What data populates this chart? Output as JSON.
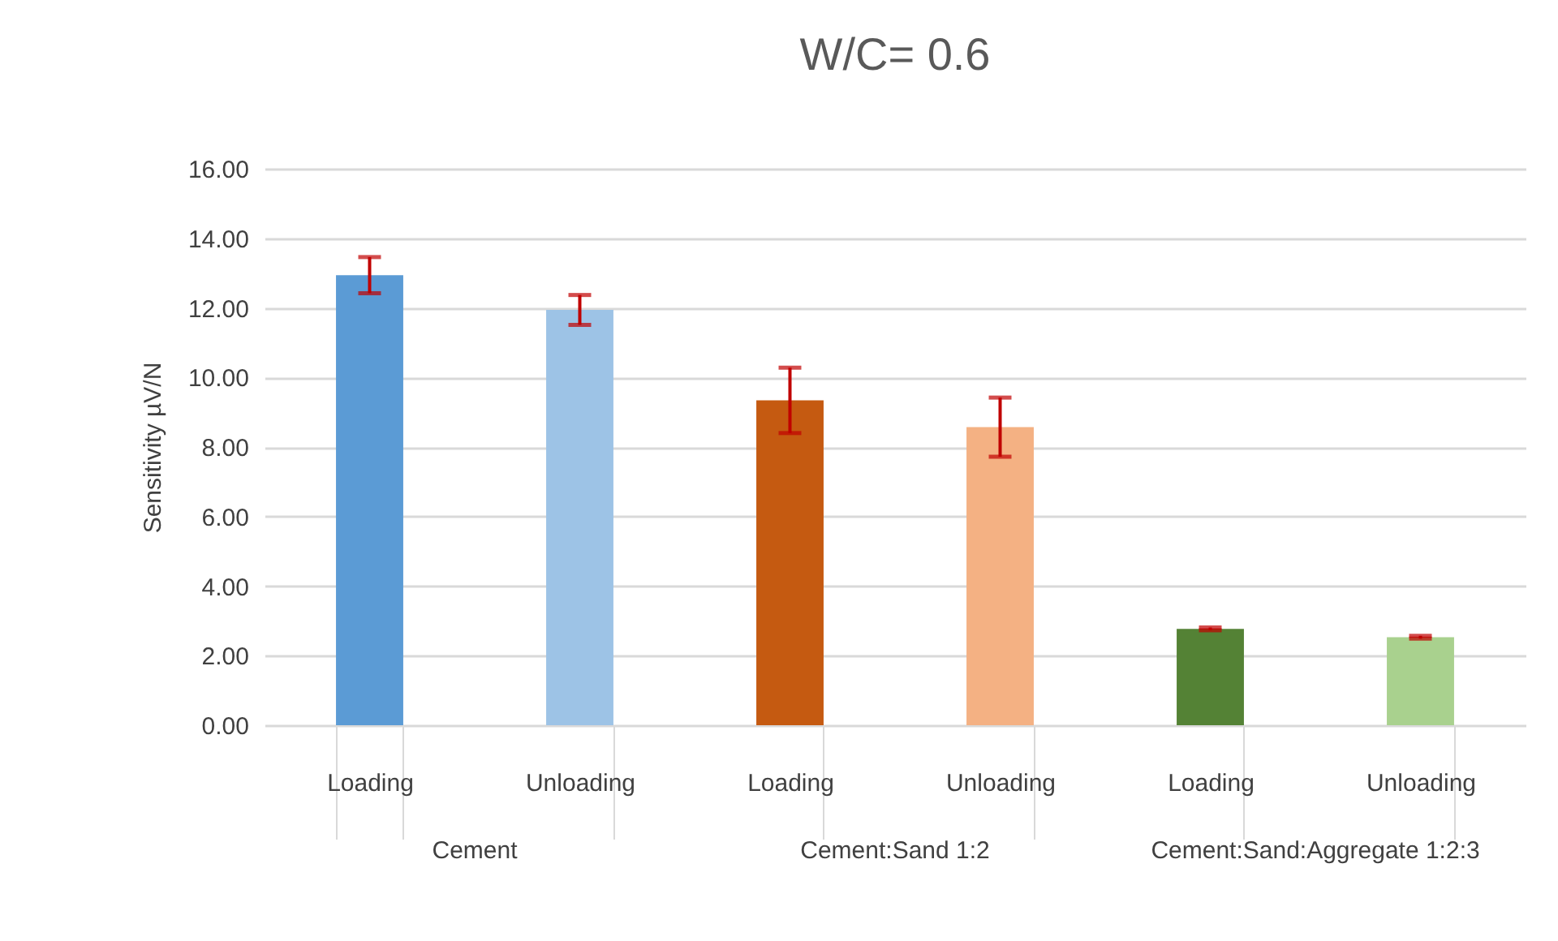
{
  "chart_data": {
    "type": "bar",
    "title": "W/C= 0.6",
    "ylabel": "Sensitivity µV/N",
    "categories": [
      "Loading",
      "Unloading",
      "Loading",
      "Unloading",
      "Loading",
      "Unloading"
    ],
    "values": [
      12.94,
      11.94,
      9.34,
      8.57,
      2.77,
      2.53
    ],
    "errors": [
      0.52,
      0.43,
      0.94,
      0.85,
      0.04,
      0.04
    ],
    "colors": [
      "#5b9bd5",
      "#9dc3e6",
      "#c55a11",
      "#f4b183",
      "#548235",
      "#a9d18e"
    ],
    "annotations": [
      "Cement",
      "Cement:Sand 1:2",
      "Cement:Sand:Aggregate 1:2:3"
    ],
    "ylim": [
      0,
      16
    ],
    "yticks": [
      {
        "value": 0,
        "label": "0.00"
      },
      {
        "value": 2,
        "label": "2.00"
      },
      {
        "value": 4,
        "label": "4.00"
      },
      {
        "value": 6,
        "label": "6.00"
      },
      {
        "value": 8,
        "label": "8.00"
      },
      {
        "value": 10,
        "label": "10.00"
      },
      {
        "value": 12,
        "label": "12.00"
      },
      {
        "value": 14,
        "label": "14.00"
      },
      {
        "value": 16,
        "label": "16.00"
      }
    ],
    "grid": "y"
  }
}
